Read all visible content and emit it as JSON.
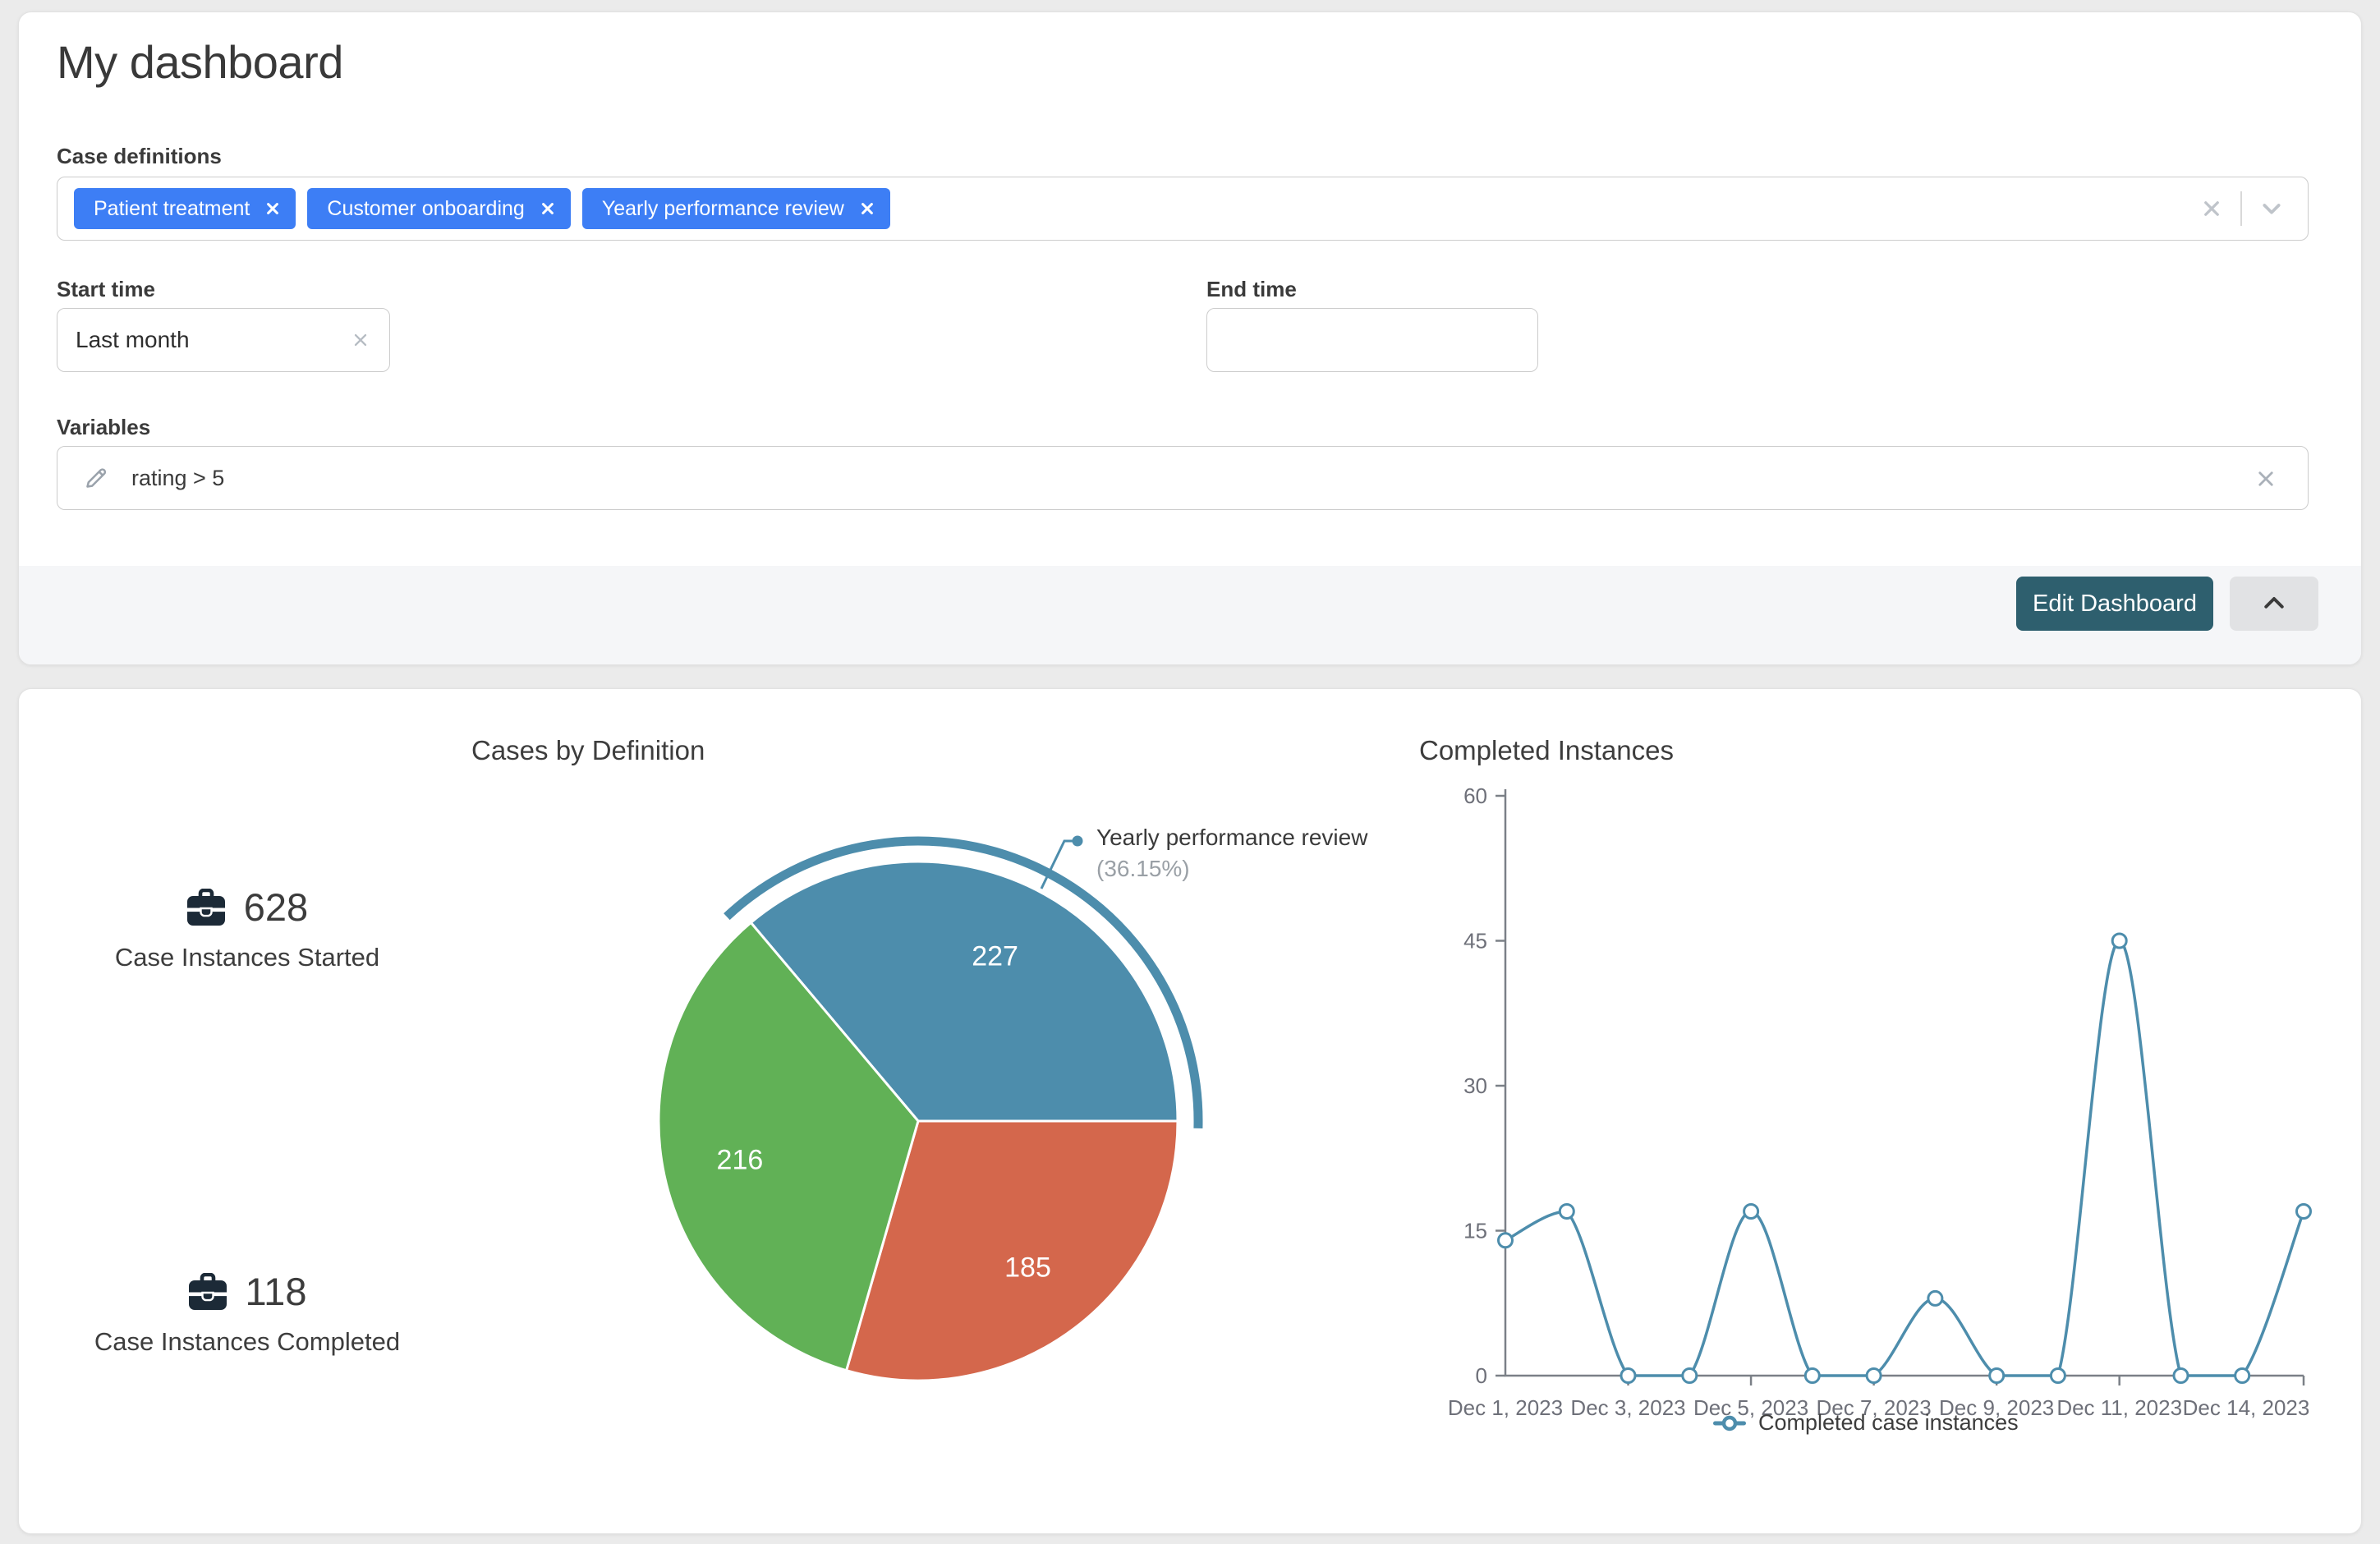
{
  "colors": {
    "chip_blue": "#3d7ef5",
    "button_teal": "#2e5f6e",
    "chart_blue": "#4d8dac",
    "chart_red": "#d4674c",
    "chart_green": "#61b156",
    "icon_dark": "#1c2a37",
    "axis_gray": "#6e7079"
  },
  "filters_card": {
    "title": "My dashboard",
    "case_definitions": {
      "label": "Case definitions",
      "chips": [
        "Patient treatment",
        "Customer onboarding",
        "Yearly performance review"
      ]
    },
    "start_time": {
      "label": "Start time",
      "value": "Last month"
    },
    "end_time": {
      "label": "End time",
      "value": ""
    },
    "variables": {
      "label": "Variables",
      "value": "rating > 5"
    },
    "edit_button_label": "Edit Dashboard"
  },
  "stats": [
    {
      "value": "628",
      "label": "Case Instances Started"
    },
    {
      "value": "118",
      "label": "Case Instances Completed"
    }
  ],
  "chart_data": [
    {
      "type": "pie",
      "title": "Cases by Definition",
      "total": 628,
      "segments": [
        {
          "label": "Yearly performance review",
          "value": 227,
          "percent": "36.15%",
          "color": "#4d8dac",
          "highlighted": true
        },
        {
          "value": 185,
          "color": "#d4674c"
        },
        {
          "value": 216,
          "color": "#61b156"
        }
      ],
      "callout": {
        "title": "Yearly performance review",
        "percent": "(36.15%)"
      }
    },
    {
      "type": "line",
      "title": "Completed Instances",
      "legend": "Completed case instances",
      "color": "#4d8dac",
      "x_start": "Dec 1, 2023",
      "x_end": "Dec 14, 2023",
      "x_tick_labels": [
        "Dec 1, 2023",
        "Dec 3, 2023",
        "Dec 5, 2023",
        "Dec 7, 2023",
        "Dec 9, 2023",
        "Dec 11, 2023",
        "Dec 14, 2023"
      ],
      "x_tick_days": [
        0,
        2,
        4,
        6,
        8,
        10,
        13
      ],
      "values": [
        14,
        17,
        0,
        0,
        17,
        0,
        0,
        8,
        0,
        0,
        45,
        0,
        0,
        17
      ],
      "yticks": [
        0,
        15,
        30,
        45,
        60
      ],
      "ylim": [
        0,
        60
      ],
      "grid": false,
      "legend_position": "bottom-center"
    }
  ]
}
